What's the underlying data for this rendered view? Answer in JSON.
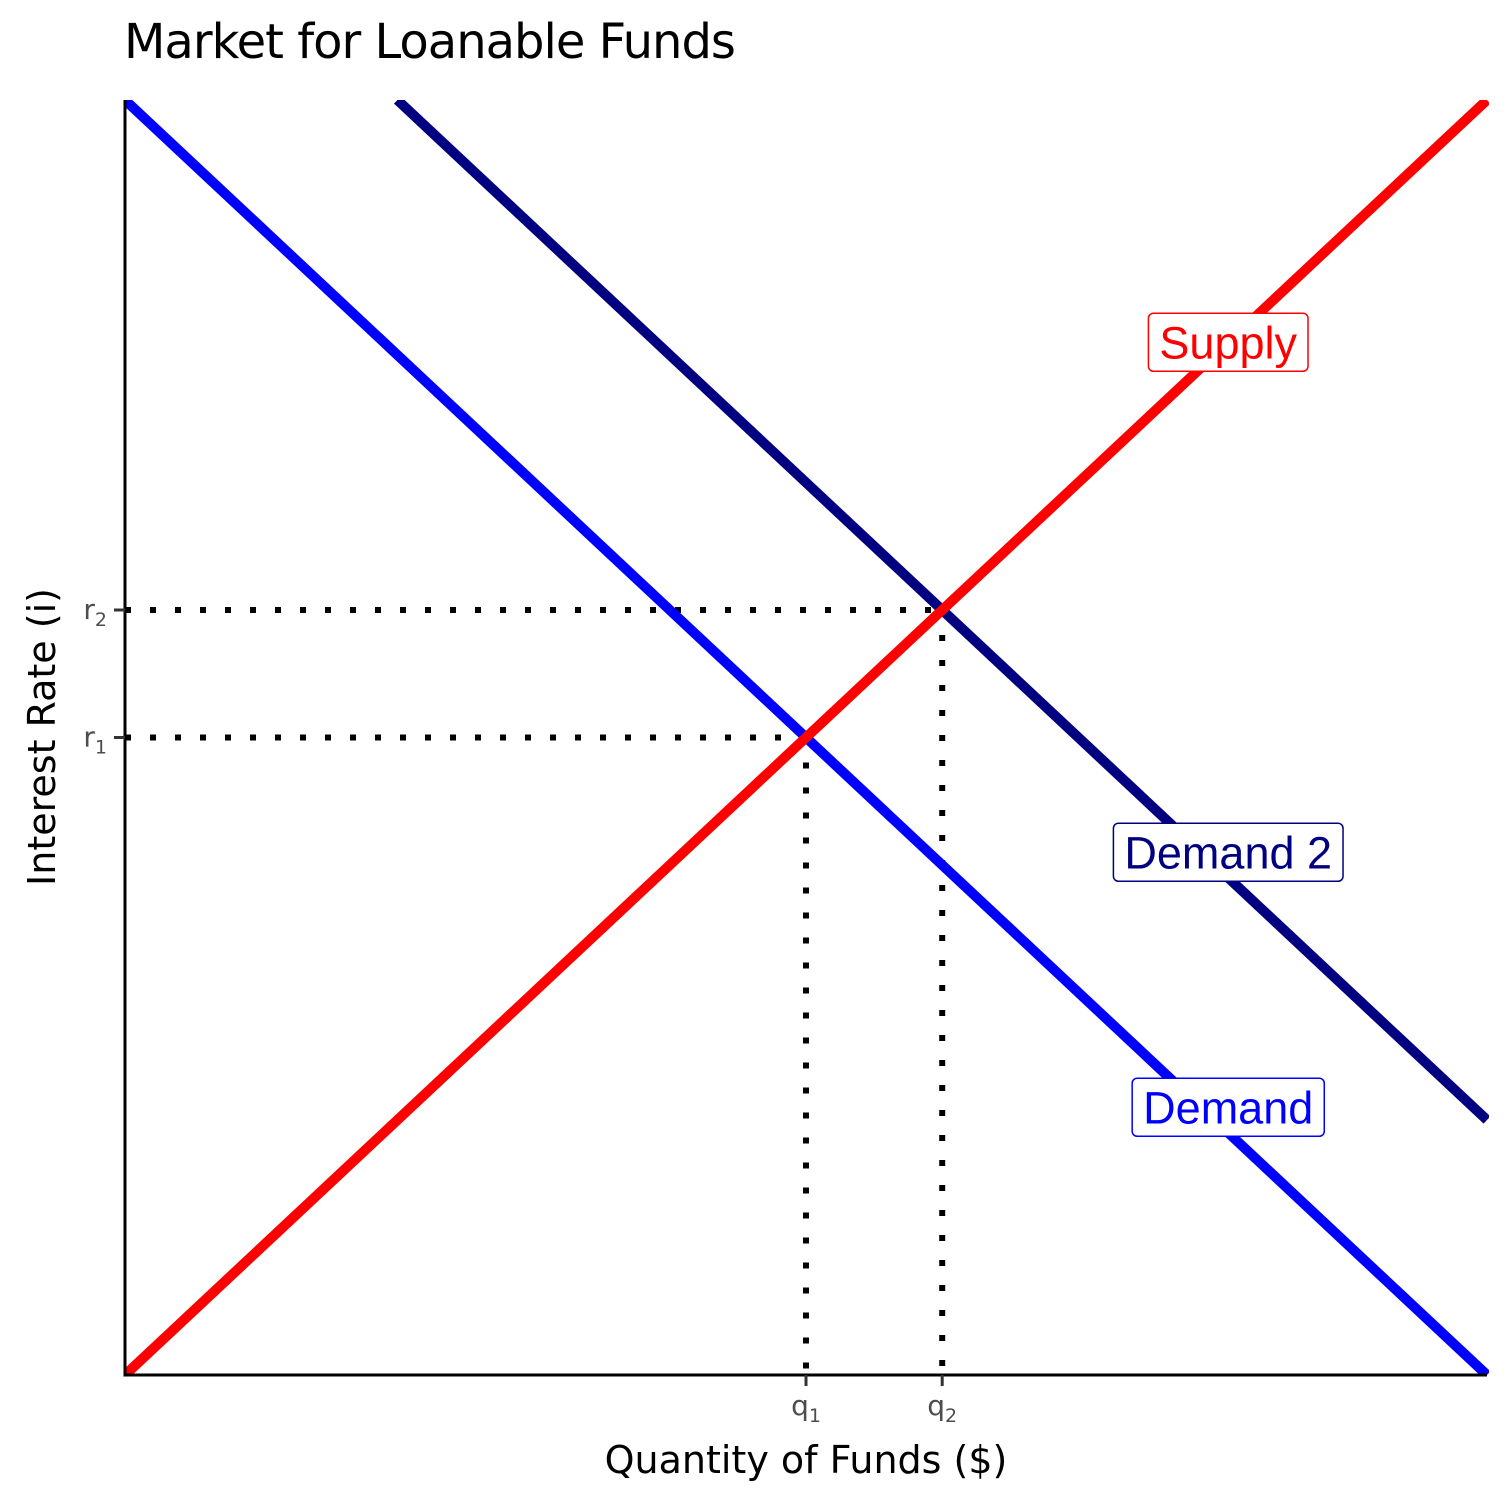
{
  "chart_data": {
    "type": "line",
    "title": "Market for Loanable Funds",
    "xlabel": "Quantity of Funds ($)",
    "ylabel": "Interest Rate (i)",
    "xlim": [
      0,
      10
    ],
    "ylim": [
      0,
      10
    ],
    "grid": false,
    "series": [
      {
        "name": "Supply",
        "color": "#ff0000",
        "points": [
          [
            0,
            0
          ],
          [
            10,
            10
          ]
        ]
      },
      {
        "name": "Demand",
        "color": "#0000ff",
        "points": [
          [
            0,
            10
          ],
          [
            10,
            0
          ]
        ]
      },
      {
        "name": "Demand 2",
        "color": "#000080",
        "points": [
          [
            2,
            10
          ],
          [
            10,
            2
          ]
        ]
      }
    ],
    "curve_labels": [
      {
        "text": "Supply",
        "x": 8.1,
        "y": 8.1,
        "color": "#ff0000"
      },
      {
        "text": "Demand 2",
        "x": 8.1,
        "y": 4.1,
        "color": "#000080"
      },
      {
        "text": "Demand",
        "x": 8.1,
        "y": 2.1,
        "color": "#0000ff"
      }
    ],
    "equilibria": [
      {
        "x": 5,
        "y": 5,
        "x_tick": "q",
        "x_sub": "1",
        "y_tick": "r",
        "y_sub": "1"
      },
      {
        "x": 6,
        "y": 6,
        "x_tick": "q",
        "x_sub": "2",
        "y_tick": "r",
        "y_sub": "2"
      }
    ]
  }
}
